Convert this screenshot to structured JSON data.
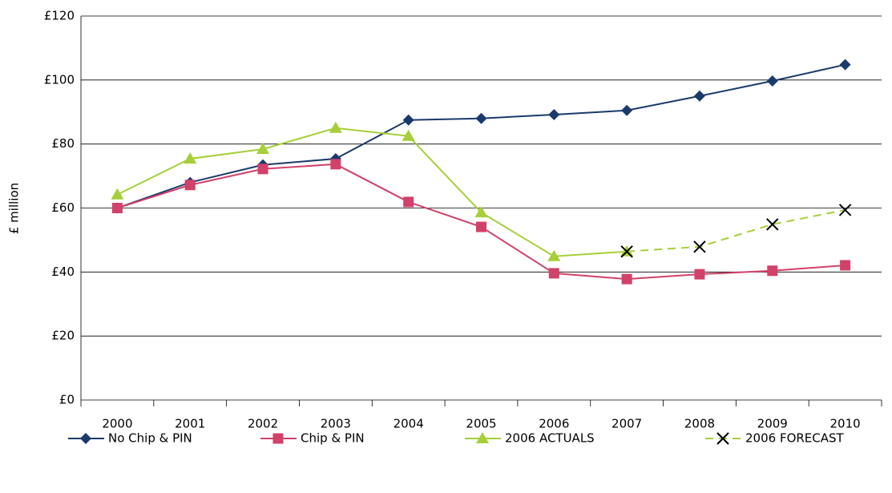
{
  "chart_data": {
    "type": "line",
    "y_label": "£ million",
    "categories": [
      "2000",
      "2001",
      "2002",
      "2003",
      "2004",
      "2005",
      "2006",
      "2007",
      "2008",
      "2009",
      "2010"
    ],
    "series": [
      {
        "name": "No Chip & PIN",
        "color": "#1b3a6b",
        "marker": "diamond",
        "dashed": false,
        "values": [
          60,
          68,
          73.5,
          75.4,
          87.5,
          88,
          89.2,
          90.5,
          95,
          99.7,
          104.8
        ]
      },
      {
        "name": "Chip & PIN",
        "color": "#d1416a",
        "marker": "square",
        "dashed": false,
        "values": [
          60,
          67.2,
          72.2,
          73.7,
          61.9,
          54.1,
          39.6,
          37.8,
          39.3,
          40.4,
          42.1
        ]
      },
      {
        "name": "2006 ACTUALS",
        "color": "#a6cf38",
        "marker": "triangle",
        "dashed": false,
        "values": [
          64.2,
          75.4,
          78.4,
          85,
          82.5,
          58.6,
          44.9,
          46.4,
          null,
          null,
          null
        ]
      },
      {
        "name": "2006 FORECAST",
        "color": "#a6cf38",
        "marker": "x",
        "dashed": true,
        "values": [
          null,
          null,
          null,
          null,
          null,
          null,
          null,
          46.4,
          47.9,
          54.9,
          59.4
        ]
      }
    ],
    "ylim": [
      0,
      120
    ],
    "yticks": [
      {
        "value": 0,
        "label": "£0"
      },
      {
        "value": 20,
        "label": "£20"
      },
      {
        "value": 40,
        "label": "£40"
      },
      {
        "value": 60,
        "label": "£60"
      },
      {
        "value": 80,
        "label": "£80"
      },
      {
        "value": 100,
        "label": "£100"
      },
      {
        "value": 120,
        "label": "£120"
      }
    ],
    "grid": true
  }
}
